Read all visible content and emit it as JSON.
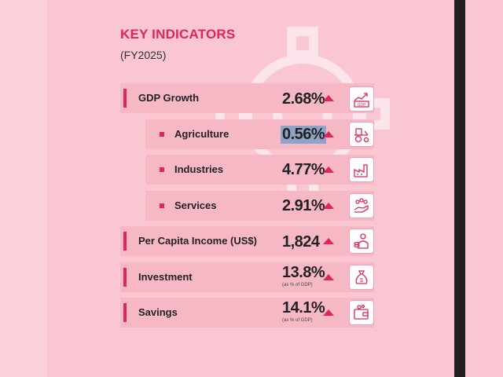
{
  "header": {
    "title": "KEY INDICATORS",
    "subtitle": "(FY2025)"
  },
  "indicators": [
    {
      "label": "GDP Growth",
      "value": "2.68%",
      "icon": "gdp-chart-icon"
    },
    {
      "label": "Agriculture",
      "value": "0.56%",
      "icon": "tractor-icon"
    },
    {
      "label": "Industries",
      "value": "4.77%",
      "icon": "factory-icon"
    },
    {
      "label": "Services",
      "value": "2.91%",
      "icon": "hand-service-icon"
    },
    {
      "label": "Per Capita Income (US$)",
      "value": "1,824",
      "icon": "coin-person-icon"
    },
    {
      "label": "Investment",
      "value": "13.8%",
      "note": "(as % of GDP)",
      "icon": "money-bag-icon"
    },
    {
      "label": "Savings",
      "value": "14.1%",
      "note": "(as % of GDP)",
      "icon": "wallet-icon"
    }
  ],
  "colors": {
    "accent": "#e0245e",
    "background": "#f9c6d1",
    "row": "#f7b8c6",
    "highlight": "#8fa3c8"
  }
}
